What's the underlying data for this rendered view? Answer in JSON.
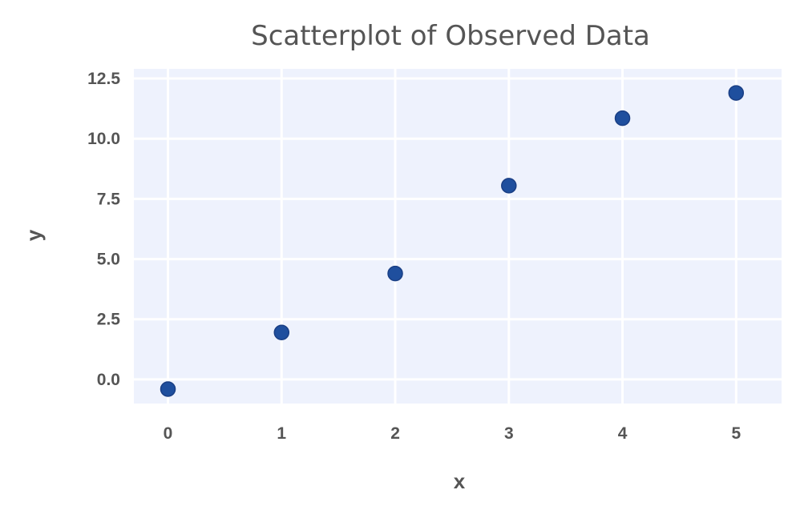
{
  "chart_data": {
    "type": "scatter",
    "title": "Scatterplot of Observed Data",
    "xlabel": "x",
    "ylabel": "y",
    "x": [
      0,
      1,
      2,
      3,
      4,
      5
    ],
    "y": [
      -0.4,
      1.95,
      4.4,
      8.05,
      10.85,
      11.9
    ],
    "xlim": [
      -0.3,
      5.4
    ],
    "ylim": [
      -1.0,
      12.9
    ],
    "xticks": [
      0,
      1,
      2,
      3,
      4,
      5
    ],
    "xtick_labels": [
      "0",
      "1",
      "2",
      "3",
      "4",
      "5"
    ],
    "yticks": [
      0.0,
      2.5,
      5.0,
      7.5,
      10.0,
      12.5
    ],
    "ytick_labels": [
      "0.0",
      "2.5",
      "5.0",
      "7.5",
      "10.0",
      "12.5"
    ],
    "grid": true,
    "colors": {
      "plot_background": "#eef2fd",
      "grid": "#ffffff",
      "marker_fill": "#1f4f9e",
      "marker_edge": "#1a3f85",
      "text": "#555555"
    }
  }
}
